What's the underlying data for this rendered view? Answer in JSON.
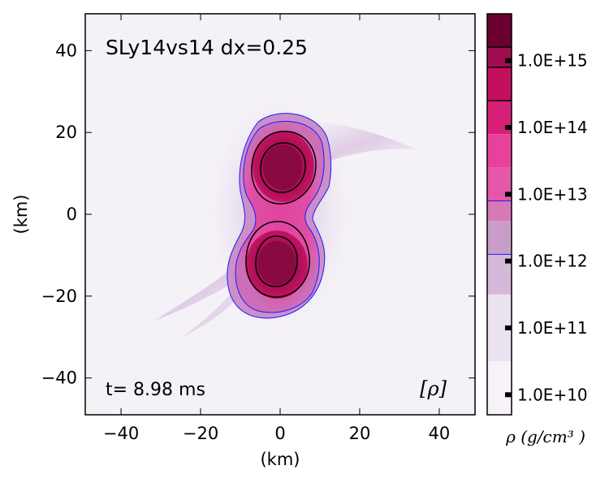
{
  "chart_data": {
    "type": "heatmap",
    "title": "SLy14vs14 dx=0.25",
    "time_label": "t= 8.98 ms",
    "field_label": "[ρ]",
    "xlabel": "(km)",
    "ylabel": "(km)",
    "xlim": [
      -49,
      49
    ],
    "ylim": [
      -49,
      49
    ],
    "xticks": [
      -40,
      -20,
      0,
      20,
      40
    ],
    "yticks": [
      -40,
      -20,
      0,
      20,
      40
    ],
    "xtick_labels": [
      "−40",
      "−20",
      "0",
      "20",
      "40"
    ],
    "ytick_labels": [
      "−40",
      "−20",
      "0",
      "20",
      "40"
    ],
    "colorbar": {
      "label": "ρ (g/cm³ )",
      "scale": "log10",
      "range_log10": [
        9.7,
        15.7
      ],
      "ticks_log10": [
        10,
        11,
        12,
        13,
        14,
        15
      ],
      "tick_labels": [
        "1.0E+10",
        "1.0E+11",
        "1.0E+12",
        "1.0E+13",
        "1.0E+14",
        "1.0E+15"
      ],
      "bands": [
        {
          "from": 9.7,
          "to": 10.5,
          "color": "#f6f2f8"
        },
        {
          "from": 10.5,
          "to": 11.5,
          "color": "#eae3ef"
        },
        {
          "from": 11.5,
          "to": 12.1,
          "color": "#d6b9da"
        },
        {
          "from": 12.1,
          "to": 12.6,
          "color": "#c89ec9"
        },
        {
          "from": 12.6,
          "to": 12.9,
          "color": "#d779b6"
        },
        {
          "from": 12.9,
          "to": 13.4,
          "color": "#e458a7"
        },
        {
          "from": 13.4,
          "to": 13.9,
          "color": "#e8419c"
        },
        {
          "from": 13.9,
          "to": 14.4,
          "color": "#d81f77"
        },
        {
          "from": 14.4,
          "to": 14.9,
          "color": "#c2105f"
        },
        {
          "from": 14.9,
          "to": 15.2,
          "color": "#a00d4f"
        },
        {
          "from": 15.2,
          "to": 15.7,
          "color": "#6b0030"
        }
      ],
      "contour_levels_log10": [
        {
          "value": 12.1,
          "color": "#1a1aff"
        },
        {
          "value": 12.9,
          "color": "#1a1aff"
        },
        {
          "value": 14.4,
          "color": "#000000"
        },
        {
          "value": 14.9,
          "color": "#000000"
        },
        {
          "value": 15.2,
          "color": "#000000"
        }
      ]
    },
    "stars": [
      {
        "name": "upper-star",
        "center_km": [
          0.5,
          11.5
        ],
        "inner_contour_radius_km": [
          6.5,
          6.5
        ],
        "outer_contour_radius_km": [
          9,
          9
        ]
      },
      {
        "name": "lower-star",
        "center_km": [
          -0.5,
          -12.5
        ],
        "inner_contour_radius_km": [
          6.5,
          7
        ],
        "outer_contour_radius_km": [
          8.5,
          8
        ]
      }
    ]
  }
}
